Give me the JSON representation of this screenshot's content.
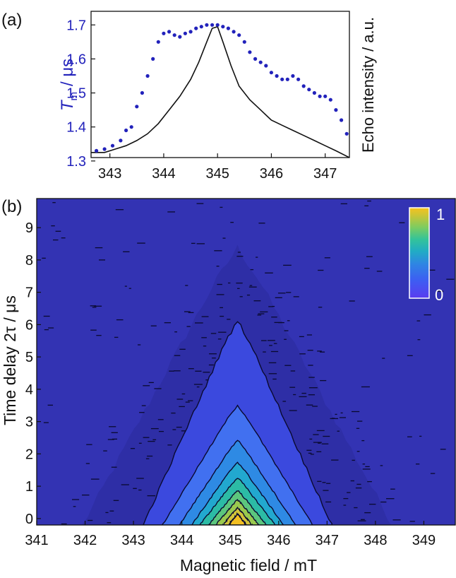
{
  "chart_data": [
    {
      "panel_label": "(a)",
      "type": "scatter",
      "xlim": [
        342.65,
        347.45
      ],
      "x_ticks": [
        "343",
        "344",
        "345",
        "346",
        "347"
      ],
      "left_axis": {
        "label_main": "T",
        "label_sub": "m",
        "label_unit": "/ μs",
        "ylim": [
          1.31,
          1.74
        ],
        "ticks": [
          "1.3",
          "1.4",
          "1.5",
          "1.6",
          "1.7"
        ],
        "color": "#2222bb"
      },
      "right_axis": {
        "label": "Echo intensity / a.u."
      },
      "series": [
        {
          "kind": "tm-dots",
          "color": "#2222bb",
          "x": [
            342.75,
            342.9,
            343.05,
            343.2,
            343.3,
            343.4,
            343.5,
            343.6,
            343.7,
            343.8,
            343.9,
            344.0,
            344.1,
            344.2,
            344.3,
            344.4,
            344.5,
            344.6,
            344.7,
            344.8,
            344.9,
            345.0,
            345.1,
            345.2,
            345.3,
            345.4,
            345.5,
            345.6,
            345.7,
            345.8,
            345.9,
            346.0,
            346.1,
            346.2,
            346.3,
            346.4,
            346.5,
            346.6,
            346.7,
            346.8,
            346.9,
            347.0,
            347.1,
            347.2,
            347.3,
            347.4
          ],
          "y": [
            1.33,
            1.335,
            1.345,
            1.36,
            1.39,
            1.4,
            1.46,
            1.5,
            1.55,
            1.6,
            1.65,
            1.675,
            1.68,
            1.67,
            1.665,
            1.675,
            1.68,
            1.69,
            1.695,
            1.7,
            1.7,
            1.7,
            1.695,
            1.69,
            1.68,
            1.67,
            1.65,
            1.62,
            1.6,
            1.59,
            1.58,
            1.56,
            1.55,
            1.54,
            1.54,
            1.55,
            1.54,
            1.52,
            1.51,
            1.5,
            1.49,
            1.49,
            1.48,
            1.45,
            1.42,
            1.38
          ]
        },
        {
          "kind": "echo-line",
          "color": "#111111",
          "x": [
            342.65,
            342.9,
            343.1,
            343.3,
            343.5,
            343.7,
            343.9,
            344.1,
            344.3,
            344.5,
            344.65,
            344.8,
            344.9,
            345.0,
            345.1,
            345.25,
            345.4,
            345.6,
            345.8,
            346.0,
            346.2,
            346.4,
            346.6,
            346.8,
            347.0,
            347.2,
            347.45
          ],
          "y": [
            1.325,
            1.325,
            1.335,
            1.345,
            1.36,
            1.38,
            1.41,
            1.45,
            1.49,
            1.54,
            1.59,
            1.65,
            1.69,
            1.695,
            1.65,
            1.58,
            1.52,
            1.48,
            1.45,
            1.42,
            1.405,
            1.39,
            1.375,
            1.36,
            1.345,
            1.33,
            1.31
          ]
        }
      ]
    },
    {
      "panel_label": "(b)",
      "type": "heatmap",
      "xlabel": "Magnetic field / mT",
      "ylabel": "Time delay 2τ / μs",
      "xlim": [
        341,
        349.65
      ],
      "ylim": [
        -0.2,
        9.9
      ],
      "x_ticks": [
        "341",
        "342",
        "343",
        "344",
        "345",
        "346",
        "347",
        "348",
        "349"
      ],
      "y_ticks": [
        "0",
        "1",
        "2",
        "3",
        "4",
        "5",
        "6",
        "7",
        "8",
        "9"
      ],
      "colorbar": {
        "min_label": "0",
        "max_label": "1",
        "colors": [
          "#5a3cf0",
          "#3d5ef2",
          "#2e86e3",
          "#21acc4",
          "#33c39a",
          "#7bcc62",
          "#c2c63a",
          "#f7c21e"
        ]
      },
      "peak_x": 345.15,
      "contours": [
        {
          "level": 0.12,
          "color": "#3b49de",
          "half_width_base": 1.95,
          "height": 6.3
        },
        {
          "level": 0.25,
          "color": "#4170f0",
          "half_width_base": 1.55,
          "height": 3.6
        },
        {
          "level": 0.35,
          "color": "#2e8ae4",
          "half_width_base": 1.2,
          "height": 2.5
        },
        {
          "level": 0.45,
          "color": "#22a8cf",
          "half_width_base": 0.95,
          "height": 1.8
        },
        {
          "level": 0.55,
          "color": "#2cbba5",
          "half_width_base": 0.78,
          "height": 1.3
        },
        {
          "level": 0.65,
          "color": "#5cc67d",
          "half_width_base": 0.6,
          "height": 0.9
        },
        {
          "level": 0.75,
          "color": "#9ac94e",
          "half_width_base": 0.45,
          "height": 0.6
        },
        {
          "level": 0.85,
          "color": "#d2c43a",
          "half_width_base": 0.3,
          "height": 0.35
        },
        {
          "level": 0.95,
          "color": "#f2bf22",
          "half_width_base": 0.18,
          "height": 0.15
        }
      ],
      "background_color": "#3333b3",
      "noise_band": {
        "half_width_base": 3.2,
        "height": 8.6
      }
    }
  ]
}
